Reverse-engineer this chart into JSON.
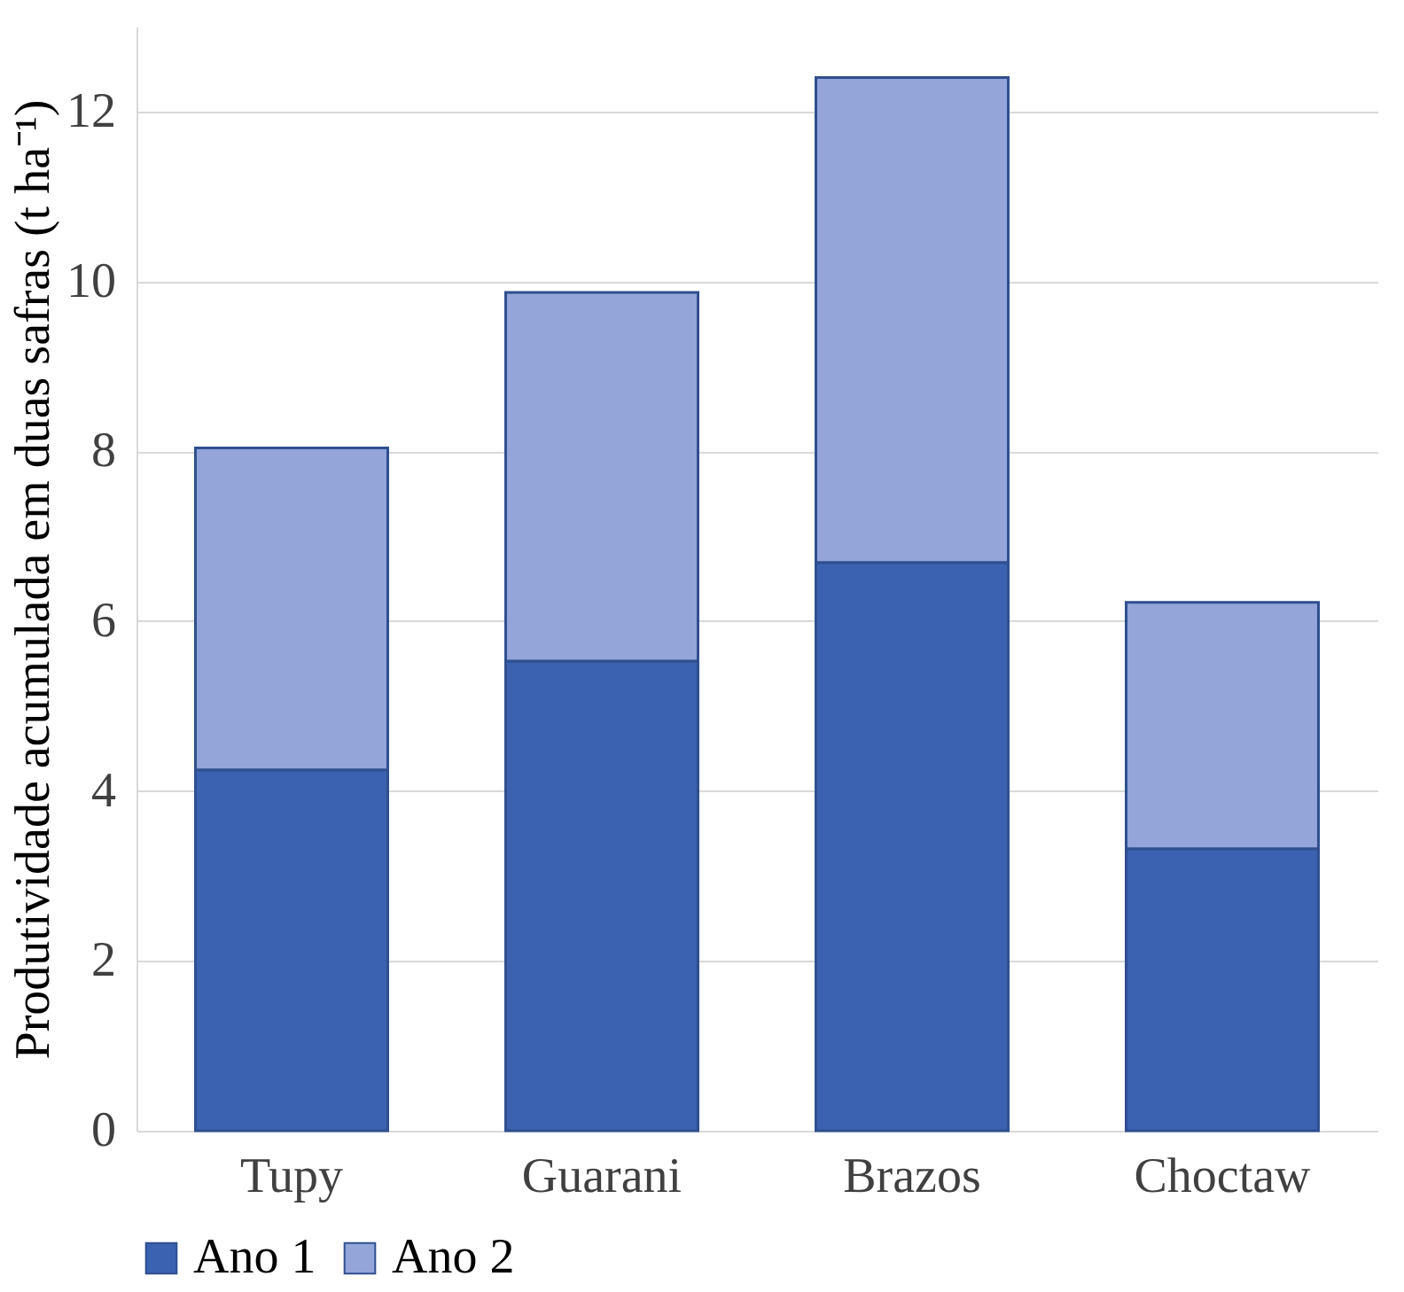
{
  "chart_data": {
    "type": "bar",
    "stacked": true,
    "ylabel": "Produtividade acumulada em duas safras (t ha⁻¹)",
    "categories": [
      "Tupy",
      "Guarani",
      "Brazos",
      "Choctaw"
    ],
    "series": [
      {
        "name": "Ano 1",
        "color": "#3a62b0",
        "values": [
          4.25,
          5.53,
          6.69,
          3.32
        ]
      },
      {
        "name": "Ano 2",
        "color": "#93a5d9",
        "values": [
          3.79,
          4.34,
          5.71,
          2.9
        ]
      }
    ],
    "ylim": [
      0,
      13
    ],
    "yticks": [
      0,
      2,
      4,
      6,
      8,
      10,
      12
    ],
    "grid": "y",
    "legend": "bottom"
  }
}
